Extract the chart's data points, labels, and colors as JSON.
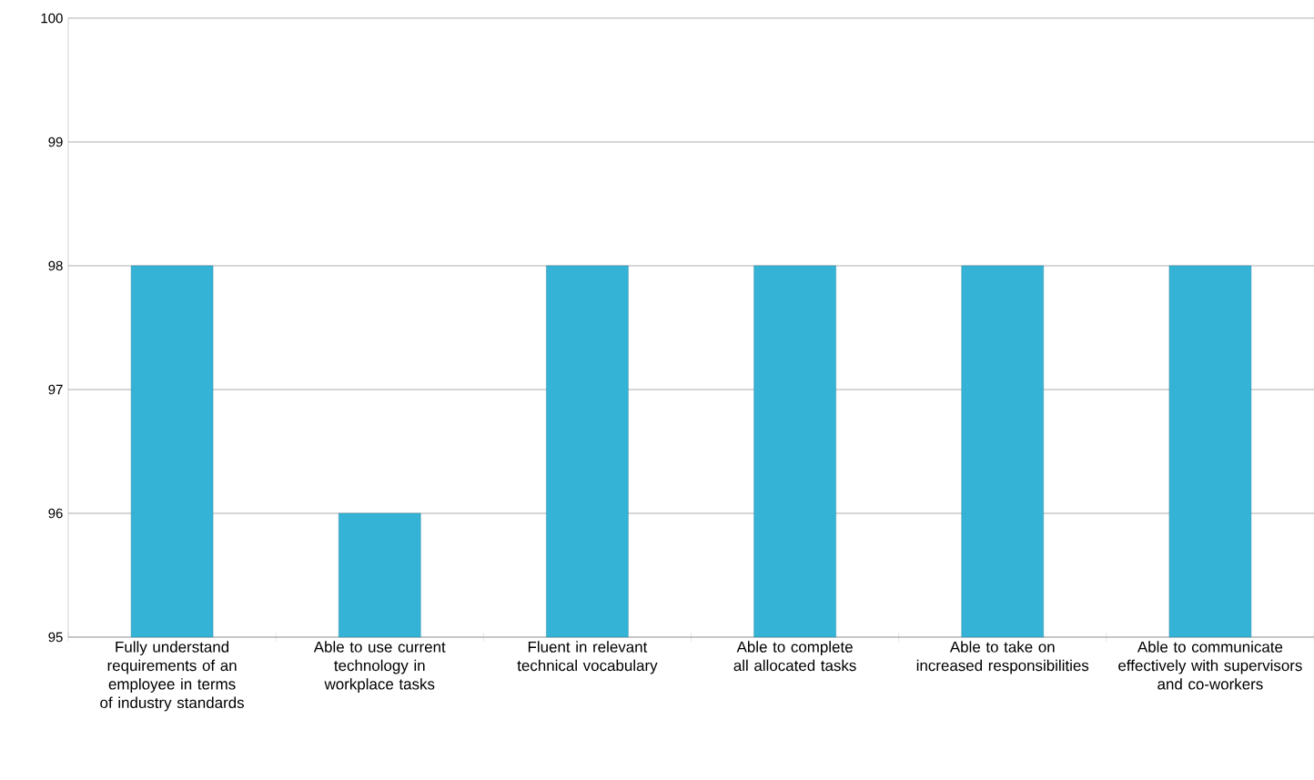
{
  "chart_data": {
    "type": "bar",
    "categories": [
      "Fully understand requirements of an employee in terms of industry standards",
      "Able to use current technology in workplace tasks",
      "Fluent in relevant technical vocabulary",
      "Able to complete all allocated tasks",
      "Able to take on increased responsibilities",
      "Able to communicate effectively with supervisors and co-workers"
    ],
    "values": [
      98,
      96,
      98,
      98,
      98,
      98
    ],
    "color": "#35b3d6",
    "ylim": [
      95,
      100
    ],
    "yticks": [
      95,
      96,
      97,
      98,
      99,
      100
    ],
    "grid": "y"
  }
}
